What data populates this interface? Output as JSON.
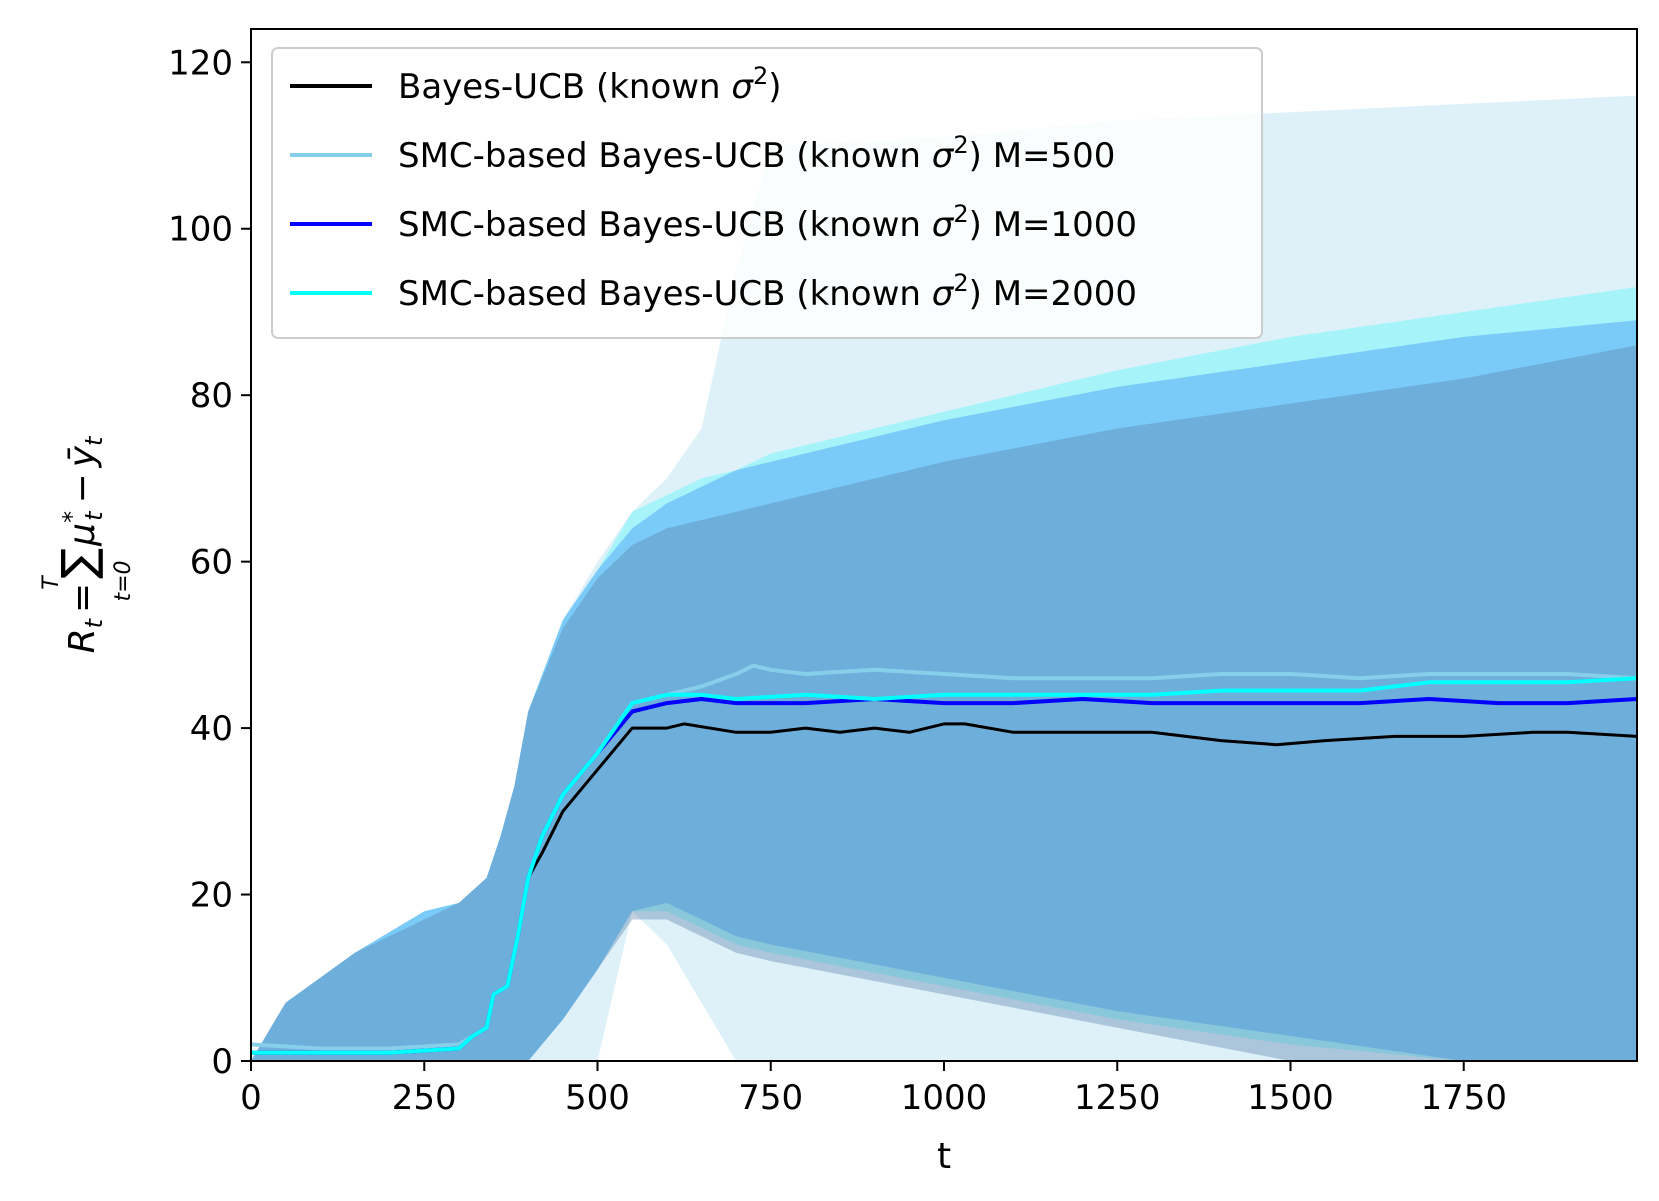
{
  "chart_data": {
    "type": "line",
    "title": "",
    "xlabel": "t",
    "ylabel": {
      "lhs": "R",
      "lhs_sub": "t",
      "eq": "=",
      "sum": "∑",
      "sum_upper": "T",
      "sum_lower": "t=0",
      "term_mu": "μ",
      "term_mu_sup": "*",
      "term_mu_sub": "t",
      "minus": "−",
      "term_y": "ȳ",
      "term_y_sub": "t"
    },
    "xlim": [
      0,
      2000
    ],
    "ylim": [
      0,
      124
    ],
    "x_ticks": [
      0,
      250,
      500,
      750,
      1000,
      1250,
      1500,
      1750
    ],
    "x_tick_labels": [
      "0",
      "250",
      "500",
      "750",
      "1000",
      "1250",
      "1500",
      "1750"
    ],
    "y_ticks": [
      0,
      20,
      40,
      60,
      80,
      100,
      120
    ],
    "y_tick_labels": [
      "0",
      "20",
      "40",
      "60",
      "80",
      "100",
      "120"
    ],
    "grid": false,
    "legend": {
      "placement": "top-left",
      "entries": [
        {
          "prefix": "Bayes-UCB (known ",
          "sigma": "σ",
          "sup": "2",
          "suffix": ")",
          "color": "#000000"
        },
        {
          "prefix": "SMC-based Bayes-UCB (known ",
          "sigma": "σ",
          "sup": "2",
          "suffix": ") M=500",
          "color": "#87ceeb"
        },
        {
          "prefix": "SMC-based Bayes-UCB (known ",
          "sigma": "σ",
          "sup": "2",
          "suffix": ") M=1000",
          "color": "#0000ff"
        },
        {
          "prefix": "SMC-based Bayes-UCB (known ",
          "sigma": "σ",
          "sup": "2",
          "suffix": ") M=2000",
          "color": "#00ffff"
        }
      ]
    },
    "bands": [
      {
        "series": "M=500",
        "color": "#87ceeb",
        "opacity": 0.28,
        "x": [
          0,
          50,
          150,
          250,
          300,
          340,
          360,
          380,
          400,
          450,
          500,
          550,
          600,
          650,
          700,
          750,
          1000,
          1250,
          1500,
          1750,
          2000
        ],
        "upper": [
          0,
          7,
          13,
          18,
          19,
          22,
          27,
          33,
          42,
          53,
          60,
          66,
          70,
          76,
          95,
          110,
          111,
          113,
          114,
          115,
          116
        ],
        "lower": [
          0,
          0,
          0,
          0,
          0,
          0,
          0,
          0,
          0,
          0,
          0,
          18,
          14,
          7,
          0,
          0,
          0,
          0,
          0,
          0,
          0
        ]
      },
      {
        "series": "M=2000",
        "color": "#00ffff",
        "opacity": 0.25,
        "x": [
          0,
          50,
          150,
          250,
          300,
          340,
          360,
          380,
          400,
          450,
          500,
          550,
          600,
          650,
          700,
          750,
          1000,
          1250,
          1500,
          1750,
          2000
        ],
        "upper": [
          0,
          7,
          13,
          18,
          19,
          22,
          27,
          33,
          42,
          53,
          59,
          66,
          68,
          70,
          71,
          73,
          78,
          83,
          87,
          90,
          93
        ],
        "lower": [
          0,
          0,
          0,
          0,
          0,
          0,
          0,
          0,
          0,
          5,
          11,
          18,
          18,
          16,
          14,
          13,
          9,
          5,
          2,
          0,
          0
        ]
      },
      {
        "series": "M=1000",
        "color": "#2a7ff5",
        "opacity": 0.35,
        "x": [
          0,
          50,
          150,
          250,
          300,
          340,
          360,
          380,
          400,
          450,
          500,
          550,
          600,
          650,
          700,
          750,
          1000,
          1250,
          1500,
          1750,
          2000
        ],
        "upper": [
          0,
          7,
          13,
          18,
          19,
          22,
          27,
          33,
          42,
          53,
          59,
          64,
          67,
          69,
          71,
          72,
          77,
          81,
          84,
          87,
          89
        ],
        "lower": [
          0,
          0,
          0,
          0,
          0,
          0,
          0,
          0,
          0,
          5,
          11,
          18,
          19,
          17,
          15,
          14,
          10,
          6,
          3,
          0,
          0
        ]
      },
      {
        "series": "Bayes-UCB",
        "color": "#5a7fa8",
        "opacity": 0.38,
        "x": [
          0,
          50,
          150,
          250,
          300,
          340,
          360,
          380,
          400,
          450,
          500,
          550,
          600,
          650,
          700,
          750,
          1000,
          1250,
          1500,
          1750,
          2000
        ],
        "upper": [
          0,
          7,
          13,
          17,
          19,
          22,
          27,
          33,
          42,
          52,
          58,
          62,
          64,
          65,
          66,
          67,
          72,
          76,
          79,
          82,
          86
        ],
        "lower": [
          0,
          0,
          0,
          0,
          0,
          0,
          0,
          0,
          0,
          5,
          11,
          17,
          17,
          15,
          13,
          12,
          8,
          4,
          0,
          0,
          0
        ]
      }
    ],
    "series": [
      {
        "name": "Bayes-UCB (known σ²)",
        "color": "#000000",
        "x": [
          0,
          100,
          200,
          300,
          320,
          340,
          350,
          370,
          385,
          400,
          420,
          450,
          500,
          550,
          600,
          625,
          700,
          750,
          800,
          850,
          900,
          950,
          1000,
          1030,
          1100,
          1200,
          1300,
          1400,
          1480,
          1550,
          1650,
          1750,
          1850,
          1900,
          2000
        ],
        "y": [
          1,
          1,
          1,
          1.5,
          3,
          4,
          8,
          9,
          15,
          22,
          25,
          30,
          35,
          40,
          40,
          40.5,
          39.5,
          39.5,
          40,
          39.5,
          40,
          39.5,
          40.5,
          40.5,
          39.5,
          39.5,
          39.5,
          38.5,
          38,
          38.5,
          39,
          39,
          39.5,
          39.5,
          39
        ]
      },
      {
        "name": "SMC-based Bayes-UCB (known σ²) M=500",
        "color": "#87ceeb",
        "x": [
          0,
          100,
          200,
          300,
          320,
          340,
          350,
          370,
          385,
          400,
          420,
          450,
          500,
          550,
          600,
          650,
          700,
          725,
          750,
          800,
          900,
          1000,
          1100,
          1200,
          1300,
          1400,
          1500,
          1600,
          1700,
          1800,
          1900,
          2000
        ],
        "y": [
          2,
          1.5,
          1.5,
          2,
          3,
          4,
          8,
          9,
          15,
          22,
          27,
          32,
          37,
          43,
          44,
          45,
          46.5,
          47.5,
          47,
          46.5,
          47,
          46.5,
          46,
          46,
          46,
          46.5,
          46.5,
          46,
          46.5,
          46.5,
          46.5,
          46
        ]
      },
      {
        "name": "SMC-based Bayes-UCB (known σ²) M=1000",
        "color": "#0000ff",
        "x": [
          0,
          100,
          200,
          300,
          320,
          340,
          350,
          370,
          385,
          400,
          420,
          450,
          500,
          550,
          600,
          650,
          700,
          800,
          900,
          1000,
          1100,
          1200,
          1300,
          1400,
          1500,
          1600,
          1700,
          1800,
          1900,
          2000
        ],
        "y": [
          1,
          1,
          1,
          1.5,
          3,
          4,
          8,
          9,
          15,
          22,
          27,
          32,
          37,
          42,
          43,
          43.5,
          43,
          43,
          43.5,
          43,
          43,
          43.5,
          43,
          43,
          43,
          43,
          43.5,
          43,
          43,
          43.5
        ]
      },
      {
        "name": "SMC-based Bayes-UCB (known σ²) M=2000",
        "color": "#00ffff",
        "x": [
          0,
          100,
          200,
          300,
          320,
          340,
          350,
          370,
          385,
          400,
          420,
          450,
          500,
          550,
          600,
          650,
          700,
          800,
          900,
          1000,
          1100,
          1200,
          1300,
          1400,
          1500,
          1600,
          1700,
          1800,
          1900,
          2000
        ],
        "y": [
          1,
          1,
          1,
          1.5,
          3,
          4,
          8,
          9,
          15,
          22,
          27,
          32,
          37,
          43,
          44,
          44,
          43.5,
          44,
          43.5,
          44,
          44,
          44,
          44,
          44.5,
          44.5,
          44.5,
          45.5,
          45.5,
          45.5,
          46
        ]
      }
    ]
  }
}
